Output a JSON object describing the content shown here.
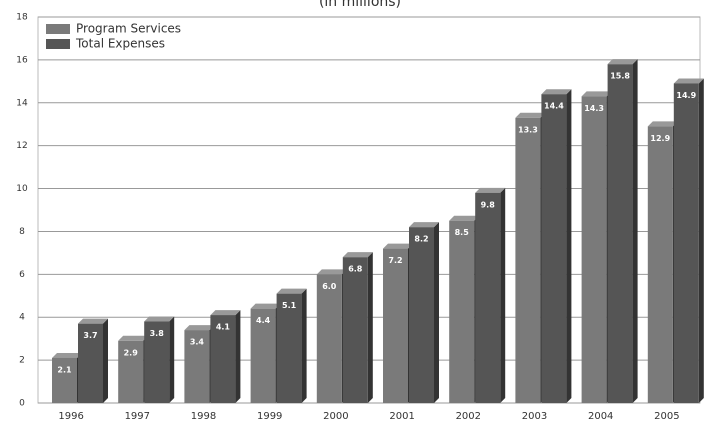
{
  "chart_data": {
    "type": "bar",
    "title": "(in millions)",
    "categories": [
      "1996",
      "1997",
      "1998",
      "1999",
      "2000",
      "2001",
      "2002",
      "2003",
      "2004",
      "2005"
    ],
    "series": [
      {
        "name": "Program Services",
        "color": "#7a7a7a",
        "values": [
          2.1,
          2.9,
          3.4,
          4.4,
          6.0,
          7.2,
          8.5,
          13.3,
          14.3,
          12.9
        ],
        "value_labels": [
          "2.1",
          "2.9",
          "3.4",
          "4.4",
          "6.0",
          "7.2",
          "8.5",
          "13.3",
          "14.3",
          "12.9"
        ]
      },
      {
        "name": "Total Expenses",
        "color": "#555555",
        "values": [
          3.7,
          3.8,
          4.1,
          5.1,
          6.8,
          8.2,
          9.8,
          14.4,
          15.8,
          14.9
        ],
        "value_labels": [
          "3.7",
          "3.8",
          "4.1",
          "5.1",
          "6.8",
          "8.2",
          "9.8",
          "14.4",
          "15.8",
          "14.9"
        ]
      }
    ],
    "ylim": [
      0,
      18
    ],
    "yticks": [
      0,
      2,
      4,
      6,
      8,
      10,
      12,
      14,
      16,
      18
    ],
    "grid": true,
    "legend": "top-left"
  }
}
